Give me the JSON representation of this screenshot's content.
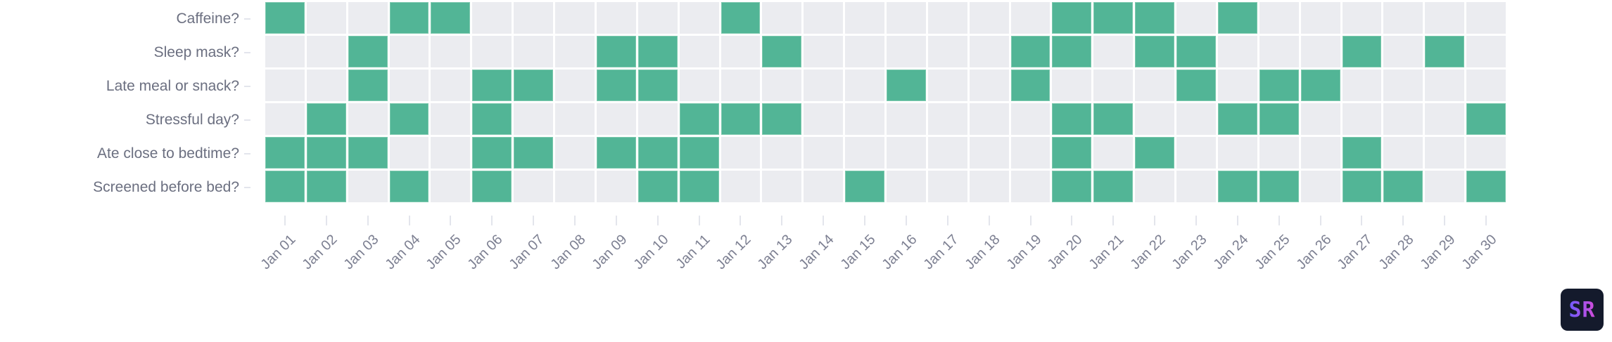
{
  "chart_data": {
    "type": "heatmap",
    "title": "",
    "xlabel": "",
    "ylabel": "",
    "legend": "none",
    "colors": {
      "yes": "#52b596",
      "no": "#ebecf0"
    },
    "categories": [
      "Jan 01",
      "Jan 02",
      "Jan 03",
      "Jan 04",
      "Jan 05",
      "Jan 06",
      "Jan 07",
      "Jan 08",
      "Jan 09",
      "Jan 10",
      "Jan 11",
      "Jan 12",
      "Jan 13",
      "Jan 14",
      "Jan 15",
      "Jan 16",
      "Jan 17",
      "Jan 18",
      "Jan 19",
      "Jan 20",
      "Jan 21",
      "Jan 22",
      "Jan 23",
      "Jan 24",
      "Jan 25",
      "Jan 26",
      "Jan 27",
      "Jan 28",
      "Jan 29",
      "Jan 30"
    ],
    "series": [
      {
        "name": "Caffeine?",
        "values": [
          1,
          0,
          0,
          1,
          1,
          0,
          0,
          0,
          0,
          0,
          0,
          1,
          0,
          0,
          0,
          0,
          0,
          0,
          0,
          1,
          1,
          1,
          0,
          1,
          0,
          0,
          0,
          0,
          0,
          0
        ]
      },
      {
        "name": "Sleep mask?",
        "values": [
          0,
          0,
          1,
          0,
          0,
          0,
          0,
          0,
          1,
          1,
          0,
          0,
          1,
          0,
          0,
          0,
          0,
          0,
          1,
          1,
          0,
          1,
          1,
          0,
          0,
          0,
          1,
          0,
          1,
          0
        ]
      },
      {
        "name": "Late meal or snack?",
        "values": [
          0,
          0,
          1,
          0,
          0,
          1,
          1,
          0,
          1,
          1,
          0,
          0,
          0,
          0,
          0,
          1,
          0,
          0,
          1,
          0,
          0,
          0,
          1,
          0,
          1,
          1,
          0,
          0,
          0,
          0
        ]
      },
      {
        "name": "Stressful day?",
        "values": [
          0,
          1,
          0,
          1,
          0,
          1,
          0,
          0,
          0,
          0,
          1,
          1,
          1,
          0,
          0,
          0,
          0,
          0,
          0,
          1,
          1,
          0,
          0,
          1,
          1,
          0,
          0,
          0,
          0,
          1
        ]
      },
      {
        "name": "Ate close to bedtime?",
        "values": [
          1,
          1,
          1,
          0,
          0,
          1,
          1,
          0,
          1,
          1,
          1,
          0,
          0,
          0,
          0,
          0,
          0,
          0,
          0,
          1,
          0,
          1,
          0,
          0,
          0,
          0,
          1,
          0,
          0,
          0
        ]
      },
      {
        "name": "Screened before bed?",
        "values": [
          1,
          1,
          0,
          1,
          0,
          1,
          0,
          0,
          0,
          1,
          1,
          0,
          0,
          0,
          1,
          0,
          0,
          0,
          0,
          1,
          1,
          0,
          0,
          1,
          1,
          0,
          1,
          1,
          0,
          1
        ]
      }
    ]
  },
  "logo": {
    "text": "SR",
    "icon": "sr-logo-icon"
  }
}
